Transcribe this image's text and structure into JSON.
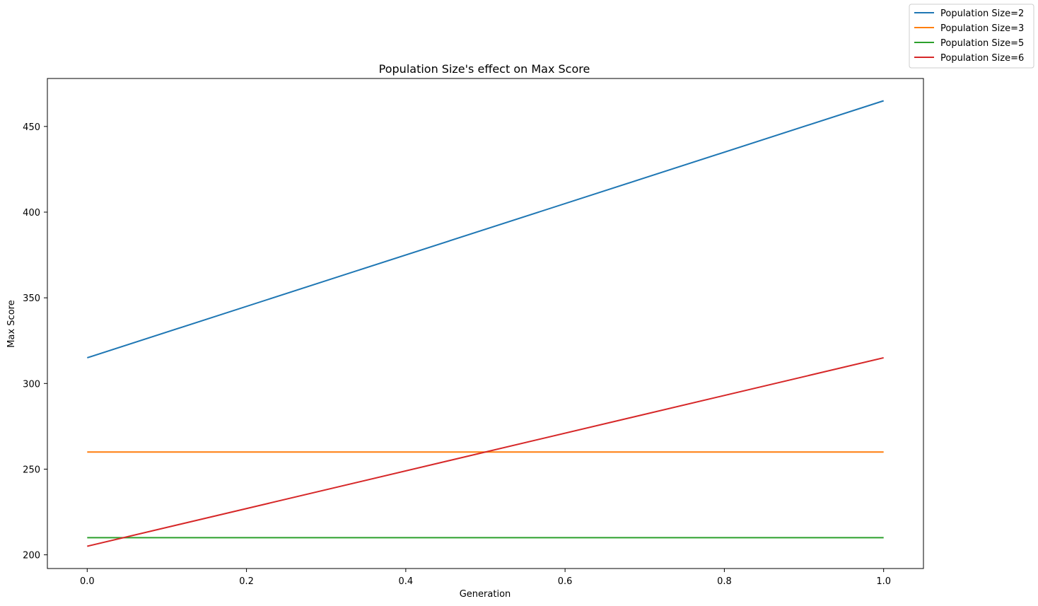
{
  "chart_data": {
    "type": "line",
    "title": "Population Size's effect on Max Score",
    "xlabel": "Generation",
    "ylabel": "Max Score",
    "xlim": [
      -0.05,
      1.05
    ],
    "ylim": [
      192,
      478
    ],
    "xticks": [
      0.0,
      0.2,
      0.4,
      0.6,
      0.8,
      1.0
    ],
    "xtick_labels": [
      "0.0",
      "0.2",
      "0.4",
      "0.6",
      "0.8",
      "1.0"
    ],
    "yticks": [
      200,
      250,
      300,
      350,
      400,
      450
    ],
    "ytick_labels": [
      "200",
      "250",
      "300",
      "350",
      "400",
      "450"
    ],
    "grid": false,
    "legend_position": "top-right (outside plot)",
    "x": [
      0.0,
      1.0
    ],
    "series": [
      {
        "name": "Population Size=2",
        "color": "#1f77b4",
        "values": [
          315,
          465
        ]
      },
      {
        "name": "Population Size=3",
        "color": "#ff7f0e",
        "values": [
          260,
          260
        ]
      },
      {
        "name": "Population Size=5",
        "color": "#2ca02c",
        "values": [
          210,
          210
        ]
      },
      {
        "name": "Population Size=6",
        "color": "#d62728",
        "values": [
          205,
          315
        ]
      }
    ]
  }
}
